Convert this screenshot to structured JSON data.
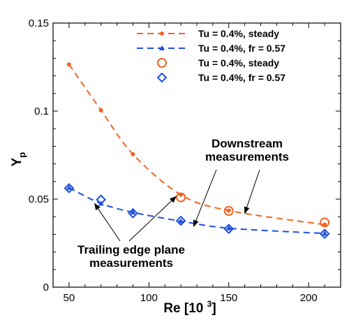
{
  "chart_data": {
    "type": "line",
    "xlabel": "Re [10",
    "xlabel_exp": "3",
    "xlabel_close": "]",
    "ylabel": "Y",
    "ylabel_sub": "p",
    "xlim": [
      40,
      220
    ],
    "ylim": [
      0,
      0.15
    ],
    "x_ticks": [
      50,
      100,
      150,
      200
    ],
    "y_ticks": [
      0,
      0.05,
      0.1,
      0.15
    ],
    "y_tick_labels": [
      "0",
      "0.05",
      "0.1",
      "0.15"
    ],
    "grid": false,
    "legend_position": "top-right",
    "series": [
      {
        "name": "Tu = 0.4%, steady",
        "style": "dashed-line-dot-marker",
        "color": "#f26522",
        "x": [
          50,
          70,
          90,
          120,
          150,
          210
        ],
        "y": [
          0.1265,
          0.1005,
          0.0755,
          0.0525,
          0.0435,
          0.0355
        ]
      },
      {
        "name": "Tu = 0.4%, fr = 0.57",
        "style": "dashed-line-triangle-marker",
        "color": "#1f4fe0",
        "x": [
          50,
          70,
          90,
          120,
          150,
          210
        ],
        "y": [
          0.0565,
          0.0475,
          0.0425,
          0.0375,
          0.0335,
          0.0305
        ]
      },
      {
        "name": "Tu = 0.4%, steady",
        "style": "circle-marker",
        "color": "#f26522",
        "x": [
          120,
          150,
          210
        ],
        "y": [
          0.051,
          0.0433,
          0.0368
        ]
      },
      {
        "name": "Tu = 0.4%, fr = 0.57",
        "style": "diamond-marker",
        "color": "#1f4fe0",
        "x": [
          50,
          70,
          90,
          120,
          150,
          210
        ],
        "y": [
          0.0562,
          0.0497,
          0.042,
          0.0377,
          0.0331,
          0.0303
        ]
      }
    ],
    "annotations": [
      {
        "lines": [
          "Downstream",
          "measurements"
        ],
        "arrows_to": [
          [
            128,
            0.0345
          ],
          [
            160,
            0.042
          ]
        ]
      },
      {
        "lines": [
          "Trailing edge plane",
          "measurements"
        ],
        "arrows_to": [
          [
            66,
            0.0475
          ],
          [
            117,
            0.0515
          ]
        ]
      }
    ]
  }
}
